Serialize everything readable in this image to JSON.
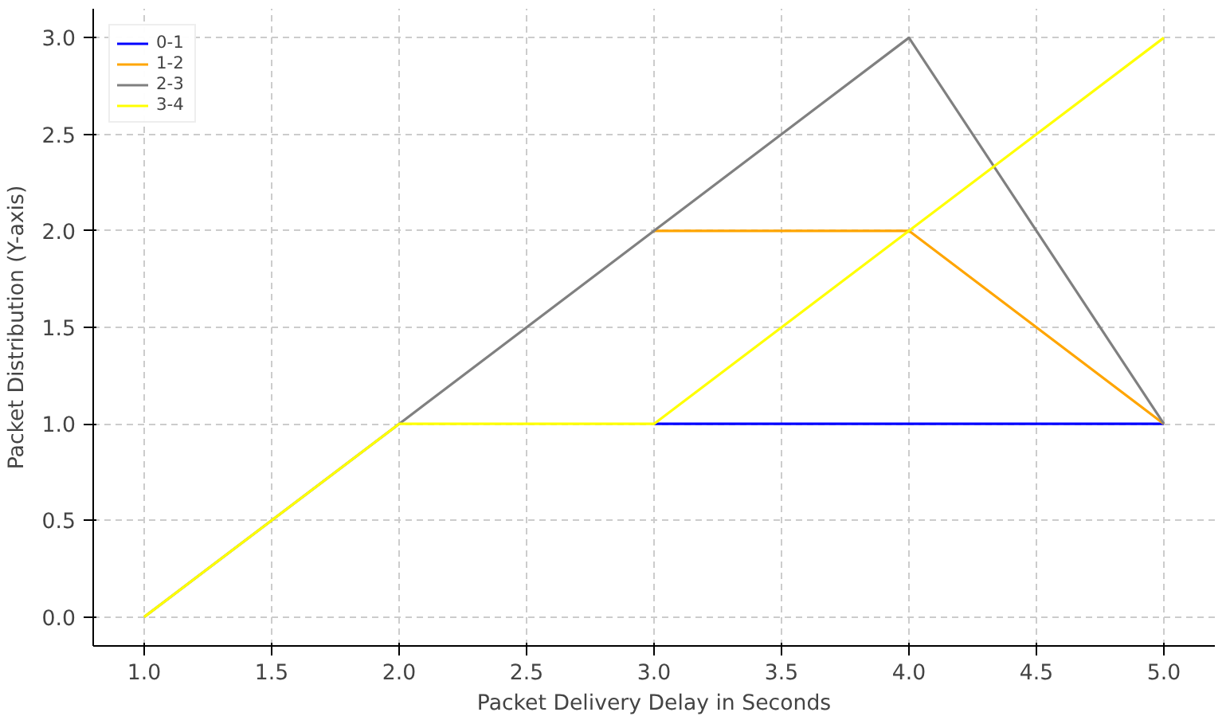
{
  "chart_data": {
    "type": "line",
    "xlabel": "Packet Delivery Delay in Seconds",
    "ylabel": "Packet Distribution (Y-axis)",
    "x": [
      1.0,
      2.0,
      3.0,
      4.0,
      5.0
    ],
    "series": [
      {
        "name": "0-1",
        "color": "#0000ff",
        "values": [
          null,
          null,
          1,
          1,
          1
        ]
      },
      {
        "name": "1-2",
        "color": "#ffa500",
        "values": [
          null,
          null,
          2,
          2,
          1
        ]
      },
      {
        "name": "2-3",
        "color": "#808080",
        "values": [
          0,
          1,
          2,
          3,
          1
        ]
      },
      {
        "name": "3-4",
        "color": "#ffff00",
        "values": [
          0,
          1,
          1,
          2,
          3
        ]
      }
    ],
    "xlim": [
      0.8,
      5.2
    ],
    "ylim": [
      -0.15,
      3.15
    ],
    "xticks": [
      {
        "value": 1,
        "label": "1.0"
      },
      1.5,
      {
        "value": 2,
        "label": "2.0"
      },
      2.5,
      {
        "value": 3,
        "label": "3.0"
      },
      3.5,
      {
        "value": 4,
        "label": "4.0"
      },
      4.5,
      {
        "value": 5,
        "label": "5.0"
      }
    ],
    "yticks": [
      {
        "value": 0,
        "label": "0.0"
      },
      0.5,
      {
        "value": 1,
        "label": "1.0"
      },
      1.5,
      {
        "value": 2,
        "label": "2.0"
      },
      2.5,
      {
        "value": 3,
        "label": "3.0"
      }
    ],
    "grid": true,
    "legend": "top left",
    "marker": "none",
    "line_style": "solid"
  }
}
